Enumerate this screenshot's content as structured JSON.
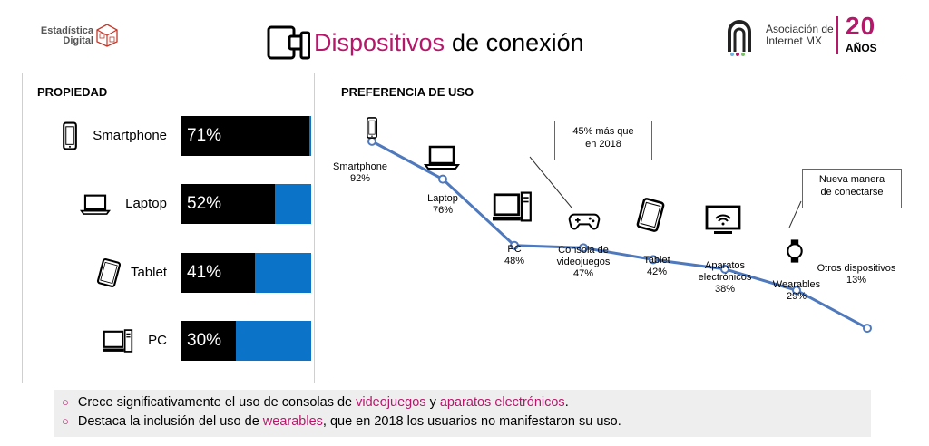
{
  "header": {
    "logo_left_line1": "Estadística",
    "logo_left_line2": "Digital",
    "title_highlight": "Dispositivos",
    "title_rest": "de conexión",
    "logo_right_line1": "Asociación de",
    "logo_right_line2": "Internet MX",
    "logo_right_years": "20",
    "logo_right_years_label": "AÑOS"
  },
  "colors": {
    "accent": "#b5186b",
    "bar_blue": "#0b74c9",
    "bar_black": "#000000",
    "line_blue": "#4f79bd"
  },
  "chart_data": [
    {
      "type": "bar",
      "title": "PROPIEDAD",
      "categories": [
        "Smartphone",
        "Laptop",
        "Tablet",
        "PC"
      ],
      "values": [
        71,
        52,
        41,
        30
      ],
      "value_labels": [
        "71%",
        "52%",
        "41%",
        "30%"
      ],
      "icons": [
        "smartphone-icon",
        "laptop-icon",
        "tablet-icon",
        "pc-icon"
      ],
      "ylim": [
        0,
        100
      ]
    },
    {
      "type": "line",
      "title": "PREFERENCIA DE USO",
      "categories": [
        "Smartphone",
        "Laptop",
        "PC",
        "Consola de videojuegos",
        "Tablet",
        "Aparatos electrónicos",
        "Wearables",
        "Otros dispositivos"
      ],
      "values": [
        92,
        76,
        48,
        47,
        42,
        38,
        29,
        13
      ],
      "value_labels": [
        "92%",
        "76%",
        "48%",
        "47%",
        "42%",
        "38%",
        "29%",
        "13%"
      ],
      "icons": [
        "smartphone-icon",
        "laptop-icon",
        "pc-icon",
        "gamepad-icon",
        "tablet-icon",
        "monitor-wifi-icon",
        "smartwatch-icon",
        ""
      ],
      "annotations": [
        {
          "text_line1": "45% más que",
          "text_line2": "en 2018",
          "target": "Consola de videojuegos"
        },
        {
          "text_line1": "Nueva manera",
          "text_line2": "de conectarse",
          "target": "Wearables"
        }
      ]
    }
  ],
  "bottom": {
    "line1": {
      "before": "Crece significativamente el uso de consolas de ",
      "hl1": "videojuegos",
      "mid": " y ",
      "hl2": "aparatos electrónicos",
      "after": "."
    },
    "line2": {
      "before": "Destaca la inclusión del uso de ",
      "hl1": "wearables",
      "after": ", que en 2018 los usuarios no manifestaron su uso."
    }
  }
}
